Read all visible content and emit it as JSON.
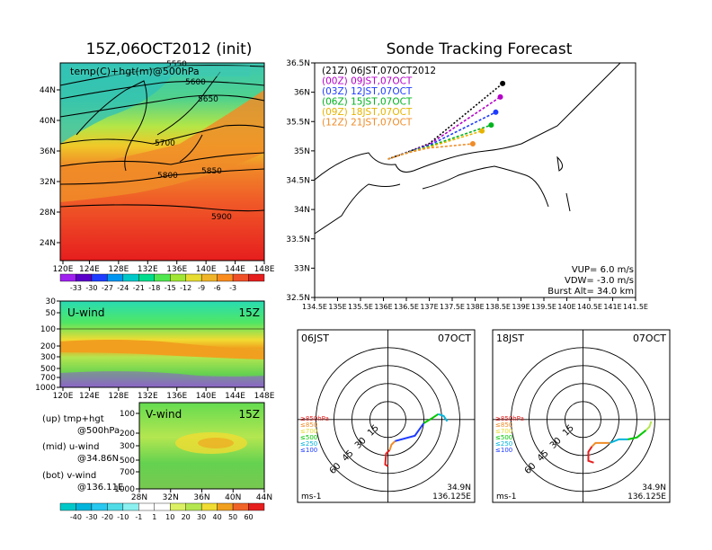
{
  "left_title": "15Z,06OCT2012 (init)",
  "right_title": "Sonde Tracking Forecast",
  "map_panel": {
    "label": "temp(C)+hgt(m)@500hPa",
    "x_ticks": [
      "120E",
      "124E",
      "128E",
      "132E",
      "136E",
      "140E",
      "144E",
      "148E"
    ],
    "y_ticks": [
      "44N",
      "40N",
      "36N",
      "32N",
      "28N",
      "24N"
    ],
    "contour_labels": [
      "5550",
      "5600",
      "5650",
      "5700",
      "5750",
      "5800",
      "5850",
      "5900"
    ],
    "colorbar_labels": [
      "-33",
      "-30",
      "-27",
      "-24",
      "-21",
      "-18",
      "-15",
      "-12",
      "-9",
      "-6",
      "-3"
    ],
    "colorbar_colors": [
      "#a020f0",
      "#5a00c8",
      "#1e3cff",
      "#0096f0",
      "#00c8c8",
      "#00dc8c",
      "#50e650",
      "#a0e632",
      "#e6dc32",
      "#f0b428",
      "#fa8c1e",
      "#f05028",
      "#e61e1e"
    ]
  },
  "uwind_panel": {
    "title": "U-wind",
    "time": "15Z",
    "y_ticks": [
      "30",
      "50",
      "100",
      "200",
      "300",
      "500",
      "700",
      "1000"
    ],
    "x_ticks": [
      "120E",
      "124E",
      "128E",
      "132E",
      "136E",
      "140E",
      "144E",
      "148E"
    ]
  },
  "vwind_panel": {
    "title": "V-wind",
    "time": "15Z",
    "y_ticks": [
      "100",
      "200",
      "300",
      "500",
      "700",
      "1000"
    ],
    "x_ticks": [
      "28N",
      "32N",
      "36N",
      "40N",
      "44N"
    ]
  },
  "legend_text": {
    "up": "(up) tmp+hgt",
    "up2": "@500hPa",
    "mid": "(mid) u-wind",
    "mid2": "@34.86N",
    "bot": "(bot) v-wind",
    "bot2": "@136.11E"
  },
  "wind_colorbar": {
    "labels": [
      "-40",
      "-30",
      "-20",
      "-10",
      "-1",
      "1",
      "10",
      "20",
      "30",
      "40",
      "50",
      "60"
    ],
    "colors": [
      "#00c8c8",
      "#00b4dc",
      "#28c8f0",
      "#50dce6",
      "#8cf0f0",
      "#ffffff",
      "#ffffff",
      "#dcf064",
      "#b4e650",
      "#f0dc32",
      "#f0a01e",
      "#f06428",
      "#e61e1e"
    ]
  },
  "track_panel": {
    "x_ticks": [
      "134.5E",
      "135E",
      "135.5E",
      "136E",
      "136.5E",
      "137E",
      "137.5E",
      "138E",
      "138.5E",
      "139E",
      "139.5E",
      "140E",
      "140.5E",
      "141E",
      "141.5E"
    ],
    "y_ticks": [
      "36.5N",
      "36N",
      "35.5N",
      "35N",
      "34.5N",
      "34N",
      "33.5N",
      "33N",
      "32.5N"
    ],
    "tracks": [
      {
        "label": "(21Z)  06JST,07OCT2012",
        "color": "#000000",
        "end": [
          138.6,
          36.15
        ]
      },
      {
        "label": "(00Z)  09JST,07OCT",
        "color": "#b400c8",
        "end": [
          138.55,
          35.92
        ]
      },
      {
        "label": "(03Z)  12JST,07OCT",
        "color": "#1e3cff",
        "end": [
          138.45,
          35.66
        ]
      },
      {
        "label": "(06Z)  15JST,07OCT",
        "color": "#00b41e",
        "end": [
          138.35,
          35.44
        ]
      },
      {
        "label": "(09Z)  18JST,07OCT",
        "color": "#e6b400",
        "end": [
          138.15,
          35.34
        ]
      },
      {
        "label": "(12Z)  21JST,07OCT",
        "color": "#f08c28",
        "end": [
          137.95,
          35.12
        ]
      }
    ],
    "start": [
      136.1,
      34.86
    ],
    "params": [
      "VUP= 6.0 m/s",
      "VDW= -3.0 m/s",
      "Burst Alt= 34.0 km"
    ]
  },
  "hodo_left": {
    "time": "06JST",
    "date": "07OCT",
    "rings": [
      "15",
      "30",
      "45",
      "60"
    ],
    "legend": [
      "≥850hPa",
      "≤850",
      "≤700",
      "≤500",
      "≤250",
      "≤100"
    ],
    "legend_colors": [
      "#e61e1e",
      "#f08c28",
      "#e6dc32",
      "#00c800",
      "#00b4dc",
      "#1e3cff"
    ],
    "unit": "ms-1",
    "loc1": "34.9N",
    "loc2": "136.125E"
  },
  "hodo_right": {
    "time": "18JST",
    "date": "07OCT",
    "rings": [
      "15",
      "30",
      "45",
      "60"
    ],
    "legend": [
      "≥850hPa",
      "≤850",
      "≤700",
      "≤500",
      "≤250",
      "≤100"
    ],
    "legend_colors": [
      "#e61e1e",
      "#f08c28",
      "#e6dc32",
      "#00c800",
      "#00b4dc",
      "#1e3cff"
    ],
    "unit": "ms-1",
    "loc1": "34.9N",
    "loc2": "136.125E"
  }
}
